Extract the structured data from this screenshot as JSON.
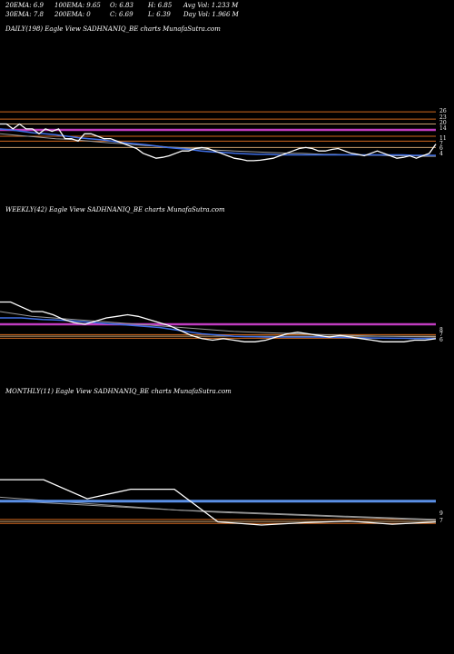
{
  "header": {
    "row1": [
      {
        "label": "20EMA: 6.9"
      },
      {
        "label": "100EMA: 9.65"
      },
      {
        "label": "O: 6.83"
      },
      {
        "label": "H: 6.85"
      },
      {
        "label": "Avg Vol: 1.233  M"
      }
    ],
    "row2": [
      {
        "label": "30EMA: 7.8"
      },
      {
        "label": "200EMA: 0"
      },
      {
        "label": "C: 6.69"
      },
      {
        "label": "L: 6.39"
      },
      {
        "label": "Day Vol: 1.966  M"
      }
    ]
  },
  "colors": {
    "background": "#000000",
    "price": "#ffffff",
    "ema_blue": "#3f6fe6",
    "ema_gray": "#9a9a9a",
    "ema_magenta": "#c03cc0",
    "level_orange": "#d2691e",
    "level_tan": "#c8a070",
    "light_blue_band": "#5a8fe6"
  },
  "chart_data": [
    {
      "type": "line",
      "title": "DAILY(198) Eagle   View  SADHNANIQ_BE charts MunafaSutra.com",
      "ytick_labels": [
        "26",
        "23",
        "20",
        "14",
        "11",
        "7",
        "6",
        "4"
      ],
      "price": [
        7.1,
        7.1,
        7.0,
        7.1,
        7.0,
        7.0,
        6.9,
        7.0,
        6.95,
        7.0,
        6.8,
        6.8,
        6.75,
        6.9,
        6.9,
        6.85,
        6.8,
        6.8,
        6.75,
        6.7,
        6.65,
        6.6,
        6.5,
        6.45,
        6.4,
        6.42,
        6.45,
        6.5,
        6.55,
        6.55,
        6.6,
        6.62,
        6.6,
        6.55,
        6.5,
        6.45,
        6.4,
        6.38,
        6.35,
        6.35,
        6.36,
        6.38,
        6.4,
        6.45,
        6.5,
        6.55,
        6.6,
        6.62,
        6.6,
        6.55,
        6.55,
        6.58,
        6.6,
        6.55,
        6.5,
        6.48,
        6.45,
        6.5,
        6.55,
        6.5,
        6.45,
        6.4,
        6.42,
        6.45,
        6.4,
        6.45,
        6.5,
        6.69
      ],
      "ema_blue": [
        7.0,
        6.98,
        6.95,
        6.92,
        6.9,
        6.88,
        6.85,
        6.82,
        6.8,
        6.78,
        6.75,
        6.72,
        6.7,
        6.68,
        6.65,
        6.62,
        6.6,
        6.58,
        6.55,
        6.53,
        6.52,
        6.5,
        6.49,
        6.48,
        6.48,
        6.47,
        6.47,
        6.47,
        6.47,
        6.47,
        6.47,
        6.47,
        6.47,
        6.47,
        6.47,
        6.47,
        6.47,
        6.46,
        6.46,
        6.46
      ],
      "ema_gray": [
        6.9,
        6.88,
        6.86,
        6.84,
        6.82,
        6.8,
        6.79,
        6.77,
        6.75,
        6.73,
        6.71,
        6.7,
        6.68,
        6.66,
        6.65,
        6.63,
        6.62,
        6.6,
        6.59,
        6.57,
        6.56,
        6.55,
        6.54,
        6.53,
        6.52,
        6.51,
        6.5,
        6.5,
        6.49,
        6.48,
        6.48,
        6.47,
        6.47,
        6.46,
        6.46,
        6.45,
        6.45,
        6.45,
        6.44,
        6.44
      ],
      "levels": [
        {
          "value": 7.35,
          "color": "#d2691e"
        },
        {
          "value": 7.2,
          "color": "#d2691e"
        },
        {
          "value": 7.1,
          "color": "#c8a070"
        },
        {
          "value": 6.98,
          "color": "#c03cc0"
        },
        {
          "value": 6.85,
          "color": "#d2691e"
        },
        {
          "value": 6.75,
          "color": "#d2691e"
        },
        {
          "value": 6.62,
          "color": "#c8a070"
        }
      ],
      "ylim": [
        6.2,
        7.5
      ],
      "grid": false
    },
    {
      "type": "line",
      "title": "WEEKLY(42) Eagle   View  SADHNANIQ_BE charts MunafaSutra.com",
      "ytick_labels": [
        "8",
        "7",
        "6"
      ],
      "price": [
        9.0,
        9.0,
        8.7,
        8.4,
        8.4,
        8.2,
        7.9,
        7.7,
        7.6,
        7.8,
        8.0,
        8.1,
        8.2,
        8.1,
        7.9,
        7.7,
        7.5,
        7.2,
        6.9,
        6.7,
        6.6,
        6.7,
        6.6,
        6.5,
        6.5,
        6.6,
        6.8,
        7.0,
        7.1,
        7.0,
        6.9,
        6.8,
        6.9,
        6.8,
        6.7,
        6.6,
        6.5,
        6.5,
        6.5,
        6.6,
        6.6,
        6.69
      ],
      "ema_blue": [
        8.0,
        8.0,
        8.0,
        7.95,
        7.9,
        7.88,
        7.85,
        7.8,
        7.75,
        7.7,
        7.65,
        7.6,
        7.55,
        7.5,
        7.45,
        7.4,
        7.3,
        7.2,
        7.1,
        7.0,
        6.95,
        6.9,
        6.85,
        6.83,
        6.82,
        6.8,
        6.8,
        6.8,
        6.8,
        6.8,
        6.8,
        6.78,
        6.78,
        6.76,
        6.75,
        6.74,
        6.73,
        6.72,
        6.72,
        6.71,
        6.71,
        6.7
      ],
      "ema_gray": [
        8.4,
        8.3,
        8.2,
        8.1,
        8.05,
        8.0,
        7.95,
        7.9,
        7.85,
        7.8,
        7.75,
        7.7,
        7.65,
        7.6,
        7.55,
        7.5,
        7.45,
        7.4,
        7.35,
        7.3,
        7.25,
        7.2,
        7.15,
        7.12,
        7.1,
        7.07,
        7.05,
        7.03,
        7.0,
        6.98,
        6.96,
        6.94,
        6.92,
        6.9,
        6.88,
        6.86,
        6.85,
        6.84,
        6.83,
        6.82,
        6.81,
        6.8
      ],
      "levels": [
        {
          "value": 7.6,
          "color": "#c03cc0"
        },
        {
          "value": 6.95,
          "color": "#d2691e"
        },
        {
          "value": 6.85,
          "color": "#c8a070"
        },
        {
          "value": 6.72,
          "color": "#d2691e"
        }
      ],
      "ylim": [
        6.0,
        10.0
      ],
      "grid": false
    },
    {
      "type": "line",
      "title": "MONTHLY(11) Eagle   View  SADHNANIQ_BE charts MunafaSutra.com",
      "ytick_labels": [
        "9",
        "7"
      ],
      "price": [
        12.0,
        12.0,
        9.6,
        10.8,
        10.8,
        6.7,
        6.3,
        6.6,
        6.8,
        6.4,
        6.69
      ],
      "ema_blue": [
        9.3,
        9.3,
        9.3,
        9.3,
        9.3,
        9.3,
        9.3,
        9.3,
        9.3,
        9.3,
        9.3
      ],
      "ema_gray": [
        9.8,
        9.4,
        9.0,
        8.6,
        8.2,
        7.9,
        7.7,
        7.5,
        7.3,
        7.1,
        6.9
      ],
      "ema_gray2": [
        9.4,
        9.1,
        8.8,
        8.5,
        8.2,
        8.0,
        7.8,
        7.6,
        7.4,
        7.2,
        7.0
      ],
      "levels": [
        {
          "value": 7.0,
          "color": "#d2691e"
        },
        {
          "value": 6.75,
          "color": "#c8a070"
        },
        {
          "value": 6.5,
          "color": "#d2691e"
        }
      ],
      "ylim": [
        5.5,
        13.5
      ],
      "grid": false
    }
  ]
}
